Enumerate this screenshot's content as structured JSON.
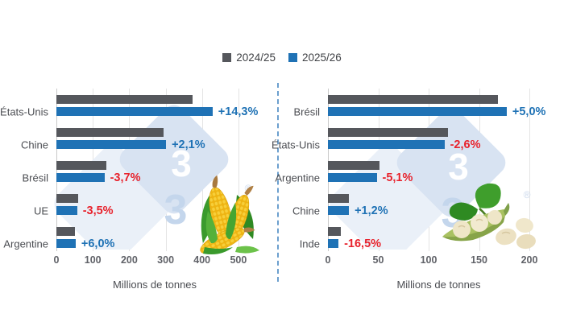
{
  "legend": {
    "items": [
      {
        "label": "2024/25",
        "color": "#55575c"
      },
      {
        "label": "2025/26",
        "color": "#1f72b5"
      }
    ]
  },
  "colors": {
    "positive": "#1f72b5",
    "negative": "#e8232d",
    "bar_2024_25": "#55575c",
    "bar_2025_26": "#1f72b5",
    "grid": "#e4e4e4",
    "axis_text": "#606268"
  },
  "watermark": {
    "text": "3",
    "registered_mark": "®"
  },
  "chart_data": [
    {
      "type": "bar",
      "orientation": "horizontal",
      "icon": "corn-illustration",
      "categories": [
        "États-Unis",
        "Chine",
        "Brésil",
        "UE",
        "Argentine"
      ],
      "series": [
        {
          "name": "2024/25",
          "color": "#55575c",
          "values": [
            375,
            295,
            137,
            59,
            50
          ]
        },
        {
          "name": "2025/26",
          "color": "#1f72b5",
          "values": [
            428.8,
            301.2,
            131.9,
            56.9,
            53
          ]
        }
      ],
      "change_labels": [
        "+14,3%",
        "+2,1%",
        "-3,7%",
        "-3,5%",
        "+6,0%"
      ],
      "xlabel": "Millions de tonnes",
      "xlim": [
        0,
        540
      ],
      "xticks": [
        0,
        100,
        200,
        300,
        400,
        500
      ],
      "grid": true,
      "legend_position": "top-center"
    },
    {
      "type": "bar",
      "orientation": "horizontal",
      "icon": "soybean-illustration",
      "categories": [
        "Brésil",
        "États-Unis",
        "Argentine",
        "Chine",
        "Inde"
      ],
      "series": [
        {
          "name": "2024/25",
          "color": "#55575c",
          "values": [
            169,
            118.8,
            51,
            20.7,
            12.6
          ]
        },
        {
          "name": "2025/26",
          "color": "#1f72b5",
          "values": [
            177.5,
            115.7,
            48.4,
            20.9,
            10.5
          ]
        }
      ],
      "change_labels": [
        "+5,0%",
        "-2,6%",
        "-5,1%",
        "+1,2%",
        "-16,5%"
      ],
      "xlabel": "Millions de tonnes",
      "xlim": [
        0,
        220
      ],
      "xticks": [
        0,
        50,
        100,
        150,
        200
      ],
      "grid": true,
      "legend_position": "top-center"
    }
  ]
}
